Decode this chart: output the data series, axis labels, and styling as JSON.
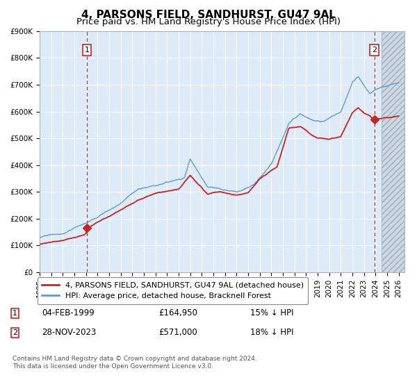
{
  "title": "4, PARSONS FIELD, SANDHURST, GU47 9AL",
  "subtitle": "Price paid vs. HM Land Registry's House Price Index (HPI)",
  "ylim": [
    0,
    900000
  ],
  "yticks": [
    0,
    100000,
    200000,
    300000,
    400000,
    500000,
    600000,
    700000,
    800000,
    900000
  ],
  "ytick_labels": [
    "£0",
    "£100K",
    "£200K",
    "£300K",
    "£400K",
    "£500K",
    "£600K",
    "£700K",
    "£800K",
    "£900K"
  ],
  "xlim_start": 1995.0,
  "xlim_end": 2026.5,
  "plot_bg_color": "#ddeaf8",
  "hpi_line_color": "#6699cc",
  "price_line_color": "#cc2222",
  "marker_color": "#cc2222",
  "dashed_line_color": "#cc2222",
  "legend_label_red": "4, PARSONS FIELD, SANDHURST, GU47 9AL (detached house)",
  "legend_label_blue": "HPI: Average price, detached house, Bracknell Forest",
  "transaction1_date": 1999.09,
  "transaction1_price": 164950,
  "transaction1_label": "1",
  "transaction2_date": 2023.91,
  "transaction2_price": 571000,
  "transaction2_label": "2",
  "footnote": "Contains HM Land Registry data © Crown copyright and database right 2024.\nThis data is licensed under the Open Government Licence v3.0.",
  "title_fontsize": 11,
  "subtitle_fontsize": 9.5,
  "tick_fontsize": 7.5,
  "legend_fontsize": 8
}
